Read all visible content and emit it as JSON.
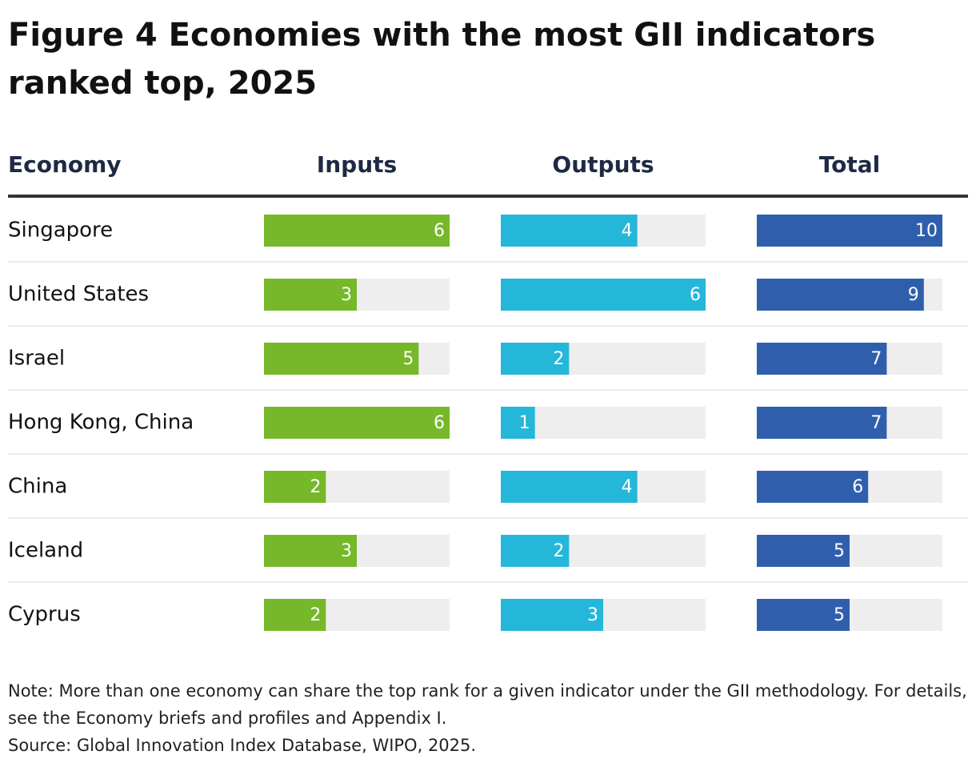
{
  "chart_data": {
    "type": "bar",
    "title": "Figure 4 Economies with the most GII indicators ranked top, 2025",
    "category_label": "Economy",
    "categories": [
      "Singapore",
      "United States",
      "Israel",
      "Hong Kong, China",
      "China",
      "Iceland",
      "Cyprus"
    ],
    "series": [
      {
        "name": "Inputs",
        "color": "#76b82a",
        "values": [
          6,
          3,
          5,
          6,
          2,
          3,
          2
        ],
        "xlim": [
          0,
          6
        ]
      },
      {
        "name": "Outputs",
        "color": "#25b7d9",
        "values": [
          4,
          6,
          2,
          1,
          4,
          2,
          3
        ],
        "xlim": [
          0,
          6
        ]
      },
      {
        "name": "Total",
        "color": "#2f5fac",
        "values": [
          10,
          9,
          7,
          7,
          6,
          5,
          5
        ],
        "xlim": [
          0,
          10
        ]
      }
    ],
    "note": "Note: More than one economy can share the top rank for a given indicator under the GII methodology. For details, see the Economy briefs and profiles and Appendix I.",
    "source": "Source: Global Innovation Index Database, WIPO, 2025."
  }
}
